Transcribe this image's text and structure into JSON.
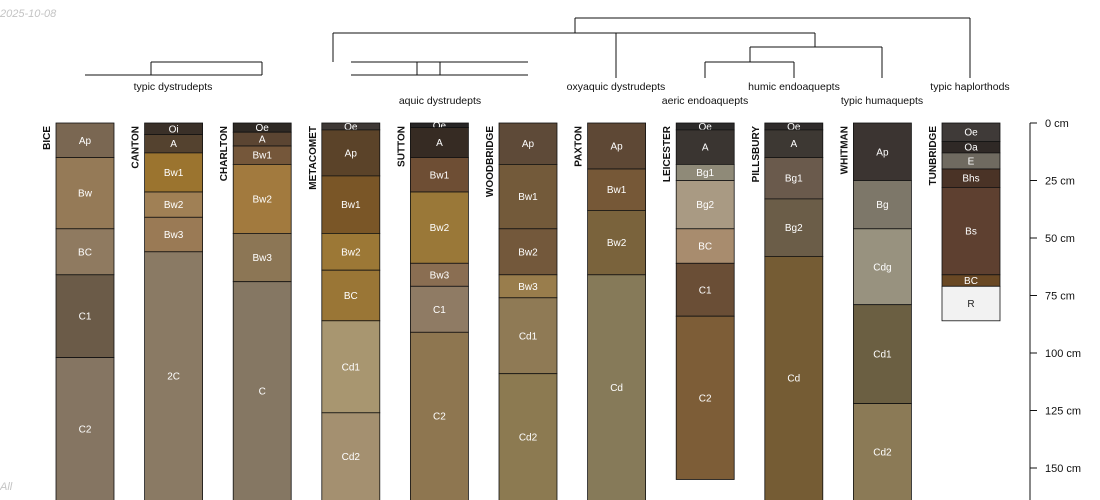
{
  "stamp": "2025-10-08",
  "corner_text": "All",
  "chart_data": {
    "type": "soil-profile-sketch",
    "depth_unit": "cm",
    "depth_ticks": [
      0,
      25,
      50,
      75,
      100,
      125,
      150
    ],
    "depth_tick_labels": [
      "0 cm",
      "25 cm",
      "50 cm",
      "75 cm",
      "100 cm",
      "125 cm",
      "150 cm"
    ],
    "group_labels": [
      {
        "text": "typic dystrudepts",
        "members": [
          "BICE",
          "CANTON",
          "CHARLTON"
        ]
      },
      {
        "text": "aquic dystrudepts",
        "members": [
          "METACOMET",
          "SUTTON",
          "WOODBRIDGE"
        ]
      },
      {
        "text": "oxyaquic dystrudepts",
        "members": [
          "PAXTON"
        ]
      },
      {
        "text": "aeric endoaquepts",
        "members": [
          "LEICESTER"
        ]
      },
      {
        "text": "humic endoaquepts",
        "members": [
          "PILLSBURY"
        ]
      },
      {
        "text": "typic humaquepts",
        "members": [
          "WHITMAN"
        ]
      },
      {
        "text": "typic haplorthods",
        "members": [
          "TUNBRIDGE"
        ]
      }
    ],
    "profiles": [
      {
        "name": "BICE",
        "horizons": [
          {
            "name": "Ap",
            "top": 0,
            "bottom": 15,
            "color": "#7a6752"
          },
          {
            "name": "Bw",
            "top": 15,
            "bottom": 46,
            "color": "#957a57"
          },
          {
            "name": "BC",
            "top": 46,
            "bottom": 66,
            "color": "#8f7a60"
          },
          {
            "name": "C1",
            "top": 66,
            "bottom": 102,
            "color": "#6b5b48"
          },
          {
            "name": "C2",
            "top": 102,
            "bottom": 165,
            "color": "#857562"
          }
        ]
      },
      {
        "name": "CANTON",
        "horizons": [
          {
            "name": "Oi",
            "top": 0,
            "bottom": 5,
            "color": "#3a3028"
          },
          {
            "name": "A",
            "top": 5,
            "bottom": 13,
            "color": "#54422f"
          },
          {
            "name": "Bw1",
            "top": 13,
            "bottom": 30,
            "color": "#9b742f"
          },
          {
            "name": "Bw2",
            "top": 30,
            "bottom": 41,
            "color": "#a08055"
          },
          {
            "name": "Bw3",
            "top": 41,
            "bottom": 56,
            "color": "#9a7a55"
          },
          {
            "name": "2C",
            "top": 56,
            "bottom": 165,
            "color": "#8a7a64"
          }
        ]
      },
      {
        "name": "CHARLTON",
        "horizons": [
          {
            "name": "Oe",
            "top": 0,
            "bottom": 4,
            "color": "#2e2924"
          },
          {
            "name": "A",
            "top": 4,
            "bottom": 10,
            "color": "#5b4532"
          },
          {
            "name": "Bw1",
            "top": 10,
            "bottom": 18,
            "color": "#75573a"
          },
          {
            "name": "Bw2",
            "top": 18,
            "bottom": 48,
            "color": "#a27a3e"
          },
          {
            "name": "Bw3",
            "top": 48,
            "bottom": 69,
            "color": "#8c7655"
          },
          {
            "name": "C",
            "top": 69,
            "bottom": 165,
            "color": "#857763"
          }
        ]
      },
      {
        "name": "METACOMET",
        "horizons": [
          {
            "name": "Oe",
            "top": 0,
            "bottom": 3,
            "color": "#3e3835"
          },
          {
            "name": "Ap",
            "top": 3,
            "bottom": 23,
            "color": "#5b4329"
          },
          {
            "name": "Bw1",
            "top": 23,
            "bottom": 48,
            "color": "#7a5627"
          },
          {
            "name": "Bw2",
            "top": 48,
            "bottom": 64,
            "color": "#9c7836"
          },
          {
            "name": "BC",
            "top": 64,
            "bottom": 86,
            "color": "#9a7636"
          },
          {
            "name": "Cd1",
            "top": 86,
            "bottom": 126,
            "color": "#a89670"
          },
          {
            "name": "Cd2",
            "top": 126,
            "bottom": 165,
            "color": "#a49070"
          }
        ]
      },
      {
        "name": "SUTTON",
        "horizons": [
          {
            "name": "Oe",
            "top": 0,
            "bottom": 2,
            "color": "#272525"
          },
          {
            "name": "A",
            "top": 2,
            "bottom": 15,
            "color": "#362b23"
          },
          {
            "name": "Bw1",
            "top": 15,
            "bottom": 30,
            "color": "#6e4e34"
          },
          {
            "name": "Bw2",
            "top": 30,
            "bottom": 61,
            "color": "#9a7838"
          },
          {
            "name": "Bw3",
            "top": 61,
            "bottom": 71,
            "color": "#8a6e52"
          },
          {
            "name": "C1",
            "top": 71,
            "bottom": 91,
            "color": "#8f7b64"
          },
          {
            "name": "C2",
            "top": 91,
            "bottom": 165,
            "color": "#8e7650"
          }
        ]
      },
      {
        "name": "WOODBRIDGE",
        "horizons": [
          {
            "name": "Ap",
            "top": 0,
            "bottom": 18,
            "color": "#5e4a38"
          },
          {
            "name": "Bw1",
            "top": 18,
            "bottom": 46,
            "color": "#735a3a"
          },
          {
            "name": "Bw2",
            "top": 46,
            "bottom": 66,
            "color": "#73583b"
          },
          {
            "name": "Bw3",
            "top": 66,
            "bottom": 76,
            "color": "#997d4c"
          },
          {
            "name": "Cd1",
            "top": 76,
            "bottom": 109,
            "color": "#8f7a55"
          },
          {
            "name": "Cd2",
            "top": 109,
            "bottom": 165,
            "color": "#8c7a51"
          }
        ]
      },
      {
        "name": "PAXTON",
        "horizons": [
          {
            "name": "Ap",
            "top": 0,
            "bottom": 20,
            "color": "#5e4835"
          },
          {
            "name": "Bw1",
            "top": 20,
            "bottom": 38,
            "color": "#765837"
          },
          {
            "name": "Bw2",
            "top": 38,
            "bottom": 66,
            "color": "#7a633c"
          },
          {
            "name": "Cd",
            "top": 66,
            "bottom": 165,
            "color": "#867a59"
          }
        ]
      },
      {
        "name": "LEICESTER",
        "horizons": [
          {
            "name": "Oe",
            "top": 0,
            "bottom": 3,
            "color": "#2c2b2a"
          },
          {
            "name": "A",
            "top": 3,
            "bottom": 18,
            "color": "#3a3531"
          },
          {
            "name": "Bg1",
            "top": 18,
            "bottom": 25,
            "color": "#8f8a78"
          },
          {
            "name": "Bg2",
            "top": 25,
            "bottom": 46,
            "color": "#a99a83"
          },
          {
            "name": "BC",
            "top": 46,
            "bottom": 61,
            "color": "#a88c6e"
          },
          {
            "name": "C1",
            "top": 61,
            "bottom": 84,
            "color": "#6a4e36"
          },
          {
            "name": "C2",
            "top": 84,
            "bottom": 155,
            "color": "#7d5d37"
          }
        ]
      },
      {
        "name": "PILLSBURY",
        "horizons": [
          {
            "name": "Oe",
            "top": 0,
            "bottom": 3,
            "color": "#2f2b2a"
          },
          {
            "name": "A",
            "top": 3,
            "bottom": 15,
            "color": "#3d3833"
          },
          {
            "name": "Bg1",
            "top": 15,
            "bottom": 33,
            "color": "#6a5a4c"
          },
          {
            "name": "Bg2",
            "top": 33,
            "bottom": 58,
            "color": "#6b5d48"
          },
          {
            "name": "Cd",
            "top": 58,
            "bottom": 165,
            "color": "#755c34"
          }
        ]
      },
      {
        "name": "WHITMAN",
        "horizons": [
          {
            "name": "Ap",
            "top": 0,
            "bottom": 25,
            "color": "#3b3431"
          },
          {
            "name": "Bg",
            "top": 25,
            "bottom": 46,
            "color": "#7d7769"
          },
          {
            "name": "Cdg",
            "top": 46,
            "bottom": 79,
            "color": "#98927f"
          },
          {
            "name": "Cd1",
            "top": 79,
            "bottom": 122,
            "color": "#6b5f42"
          },
          {
            "name": "Cd2",
            "top": 122,
            "bottom": 165,
            "color": "#8b7a56"
          }
        ]
      },
      {
        "name": "TUNBRIDGE",
        "horizons": [
          {
            "name": "Oe",
            "top": 0,
            "bottom": 8,
            "color": "#3f3a38"
          },
          {
            "name": "Oa",
            "top": 8,
            "bottom": 13,
            "color": "#2f2926"
          },
          {
            "name": "E",
            "top": 13,
            "bottom": 20,
            "color": "#6f6a60"
          },
          {
            "name": "Bhs",
            "top": 20,
            "bottom": 28,
            "color": "#4a3326"
          },
          {
            "name": "Bs",
            "top": 28,
            "bottom": 66,
            "color": "#5e4030"
          },
          {
            "name": "BC",
            "top": 66,
            "bottom": 71,
            "color": "#694824"
          },
          {
            "name": "R",
            "top": 71,
            "bottom": 86,
            "color": "#f2f2f2"
          }
        ]
      }
    ]
  }
}
